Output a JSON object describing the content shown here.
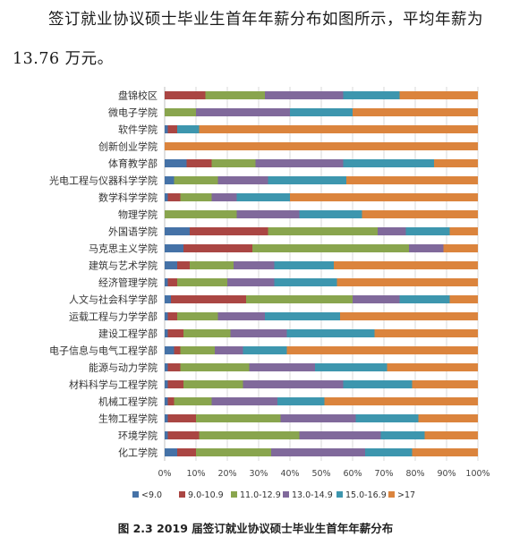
{
  "paragraph": {
    "line1": "签订就业协议硕士毕业生首年年薪分布如图所示，平均年薪为",
    "line2": "13.76 万元。"
  },
  "caption": "图 2.3   2019 届签订就业协议硕士毕业生首年年薪分布",
  "colors": {
    "series": [
      "#4572a7",
      "#aa4643",
      "#89a54e",
      "#80699b",
      "#3d96ae",
      "#db843d"
    ],
    "grid": "#d9d9d9",
    "axis": "#bfbfbf"
  },
  "chart_data": {
    "type": "bar",
    "orientation": "horizontal",
    "stacked": "percent",
    "categories": [
      "盘锦校区",
      "微电子学院",
      "软件学院",
      "创新创业学院",
      "体育教学部",
      "光电工程与仪器科学学院",
      "数学科学学院",
      "物理学院",
      "外国语学院",
      "马克思主义学院",
      "建筑与艺术学院",
      "经济管理学院",
      "人文与社会科学学部",
      "运载工程与力学学部",
      "建设工程学部",
      "电子信息与电气工程学部",
      "能源与动力学院",
      "材料科学与工程学院",
      "机械工程学院",
      "生物工程学院",
      "环境学院",
      "化工学院"
    ],
    "series": [
      {
        "name": "<9.0",
        "values": [
          0,
          0,
          1,
          0,
          7,
          3,
          1,
          0,
          8,
          6,
          4,
          1,
          2,
          1,
          1,
          3,
          1,
          1,
          1,
          1,
          1,
          4
        ]
      },
      {
        "name": "9.0-10.9",
        "values": [
          13,
          0,
          3,
          0,
          8,
          0,
          4,
          0,
          25,
          22,
          4,
          3,
          24,
          3,
          5,
          2,
          4,
          5,
          2,
          9,
          10,
          6
        ]
      },
      {
        "name": "11.0-12.9",
        "values": [
          19,
          10,
          0,
          0,
          14,
          14,
          10,
          23,
          35,
          50,
          14,
          16,
          34,
          13,
          15,
          11,
          22,
          19,
          12,
          27,
          32,
          24
        ]
      },
      {
        "name": "13.0-14.9",
        "values": [
          25,
          30,
          0,
          0,
          28,
          16,
          8,
          20,
          9,
          11,
          13,
          15,
          15,
          15,
          18,
          9,
          21,
          32,
          21,
          24,
          26,
          30
        ]
      },
      {
        "name": "15.0-16.9",
        "values": [
          18,
          20,
          7,
          0,
          29,
          25,
          17,
          20,
          14,
          0,
          19,
          20,
          16,
          24,
          28,
          14,
          23,
          22,
          15,
          20,
          14,
          15
        ]
      },
      {
        "name": ">17",
        "values": [
          25,
          40,
          89,
          100,
          14,
          42,
          60,
          37,
          9,
          11,
          46,
          45,
          9,
          44,
          33,
          61,
          29,
          21,
          49,
          19,
          17,
          21
        ]
      }
    ],
    "xlim": [
      0,
      100
    ],
    "xticks": [
      "0%",
      "10%",
      "20%",
      "30%",
      "40%",
      "50%",
      "60%",
      "70%",
      "80%",
      "90%",
      "100%"
    ],
    "grid": true,
    "legend": "bottom"
  }
}
